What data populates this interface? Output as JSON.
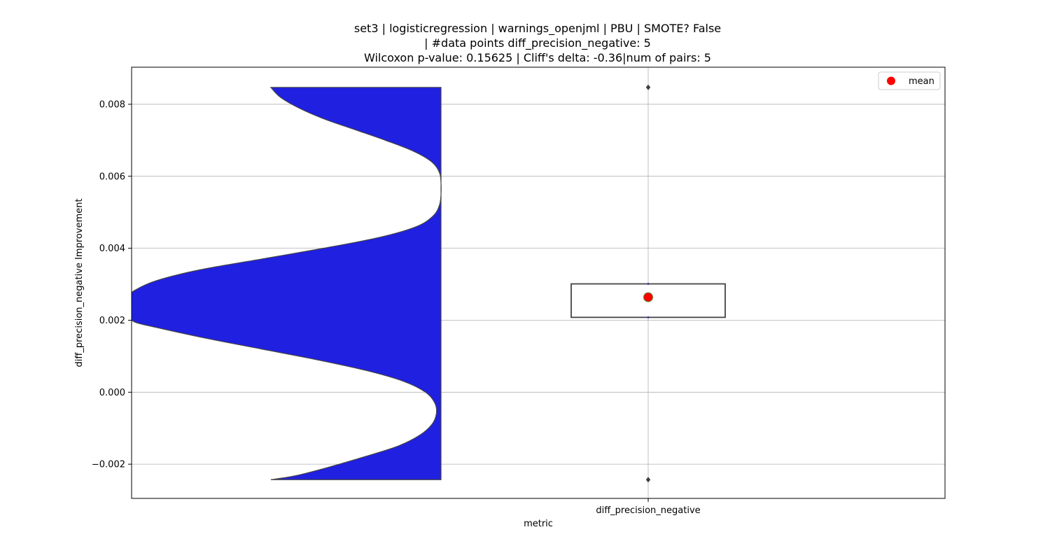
{
  "chart_data": {
    "type": "violin-box",
    "title_lines": [
      "set3 | logisticregression | warnings_openjml | PBU | SMOTE? False",
      "| #data points diff_precision_negative: 5",
      "Wilcoxon p-value: 0.15625 | Cliff's delta: -0.36|num of pairs: 5"
    ],
    "xlabel": "metric",
    "ylabel": "diff_precision_negative Improvement",
    "categories": [
      "diff_precision_negative"
    ],
    "ylim": [
      -0.00295,
      0.00903
    ],
    "yticks": [
      -0.002,
      0.0,
      0.002,
      0.004,
      0.006,
      0.008
    ],
    "ytick_labels": [
      "−0.002",
      "0.000",
      "0.002",
      "0.004",
      "0.006",
      "0.008"
    ],
    "grid": true,
    "legend": {
      "placement": "top-right",
      "entries": [
        {
          "label": "mean",
          "color": "#ff0000"
        }
      ]
    },
    "violin": {
      "color": "#2020e0",
      "side": "left",
      "density_profile": [
        [
          -0.00243,
          0.55
        ],
        [
          -0.00232,
          0.47
        ],
        [
          -0.0021,
          0.37
        ],
        [
          -0.0018,
          0.25
        ],
        [
          -0.0015,
          0.14
        ],
        [
          -0.0012,
          0.07
        ],
        [
          -0.0009,
          0.03
        ],
        [
          -0.0006,
          0.015
        ],
        [
          -0.0003,
          0.02
        ],
        [
          0.0,
          0.05
        ],
        [
          0.0003,
          0.12
        ],
        [
          0.0006,
          0.24
        ],
        [
          0.0009,
          0.4
        ],
        [
          0.0012,
          0.58
        ],
        [
          0.0015,
          0.76
        ],
        [
          0.0018,
          0.92
        ],
        [
          0.00195,
          0.99
        ],
        [
          0.0021,
          1.0
        ],
        [
          0.0024,
          1.0
        ],
        [
          0.0027,
          1.0
        ],
        [
          0.00283,
          0.99
        ],
        [
          0.0031,
          0.92
        ],
        [
          0.0034,
          0.78
        ],
        [
          0.0037,
          0.58
        ],
        [
          0.004,
          0.38
        ],
        [
          0.0043,
          0.2
        ],
        [
          0.0046,
          0.08
        ],
        [
          0.0049,
          0.025
        ],
        [
          0.0052,
          0.005
        ],
        [
          0.0055,
          0.0
        ],
        [
          0.0058,
          0.0
        ],
        [
          0.0061,
          0.005
        ],
        [
          0.0064,
          0.03
        ],
        [
          0.0067,
          0.09
        ],
        [
          0.007,
          0.18
        ],
        [
          0.0073,
          0.28
        ],
        [
          0.0076,
          0.38
        ],
        [
          0.0079,
          0.46
        ],
        [
          0.0082,
          0.52
        ],
        [
          0.00847,
          0.55
        ]
      ]
    },
    "box": {
      "q1": 0.00208,
      "q3": 0.00301,
      "whisker_low": 0.00208,
      "whisker_high": 0.00301,
      "mean": 0.00264,
      "mean_color": "#ff0000",
      "outliers": [
        0.00847,
        -0.00243
      ],
      "color": "#ffffff",
      "edge_color": "#444444"
    }
  }
}
